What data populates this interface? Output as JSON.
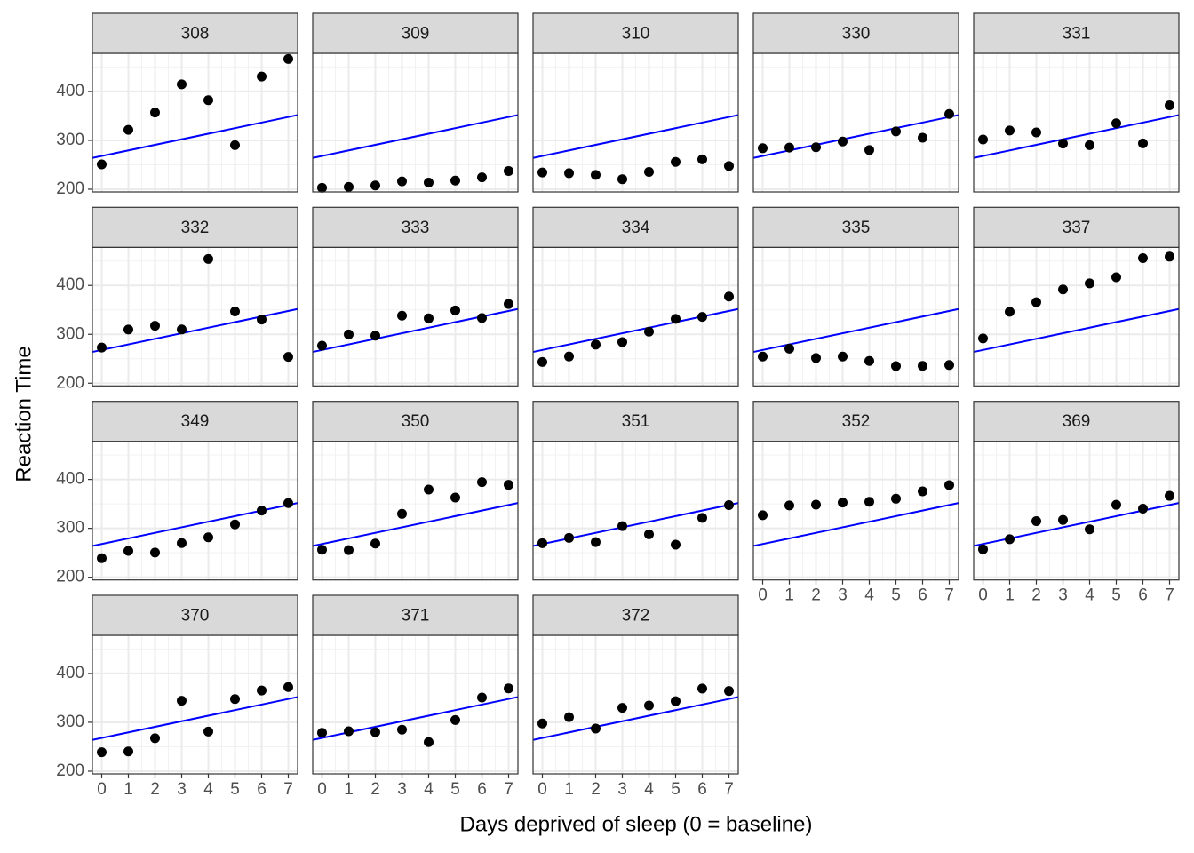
{
  "xlabel": "Days deprived of sleep (0 = baseline)",
  "ylabel": "Reaction Time",
  "chart_data": [
    {
      "type": "scatter",
      "title": "308",
      "x": [
        0,
        1,
        2,
        3,
        4,
        5,
        6,
        7
      ],
      "values": [
        250.8,
        321.4,
        356.9,
        414.7,
        382.2,
        290.1,
        430.6,
        466.4
      ],
      "fit": {
        "intercept": 268,
        "slope": 11.4
      },
      "color": "#000000",
      "line_color": "#0000ff",
      "xlim": [
        -0.35,
        7.35
      ],
      "ylim": [
        194.5,
        478
      ],
      "xticks": [
        0,
        1,
        2,
        3,
        4,
        5,
        6,
        7
      ],
      "yticks": [
        200,
        300,
        400
      ],
      "grid": true
    },
    {
      "type": "scatter",
      "title": "309",
      "x": [
        0,
        1,
        2,
        3,
        4,
        5,
        6,
        7
      ],
      "values": [
        203.0,
        204.7,
        207.7,
        216.0,
        213.6,
        217.7,
        224.3,
        237.3
      ],
      "fit": {
        "intercept": 268,
        "slope": 11.4
      },
      "color": "#000000",
      "line_color": "#0000ff",
      "xlim": [
        -0.35,
        7.35
      ],
      "ylim": [
        194.5,
        478
      ],
      "xticks": [
        0,
        1,
        2,
        3,
        4,
        5,
        6,
        7
      ],
      "yticks": [
        200,
        300,
        400
      ],
      "grid": true
    },
    {
      "type": "scatter",
      "title": "310",
      "x": [
        0,
        1,
        2,
        3,
        4,
        5,
        6,
        7
      ],
      "values": [
        234.3,
        232.8,
        229.3,
        220.5,
        235.4,
        255.8,
        261.0,
        247.5
      ],
      "fit": {
        "intercept": 268,
        "slope": 11.4
      },
      "color": "#000000",
      "line_color": "#0000ff",
      "xlim": [
        -0.35,
        7.35
      ],
      "ylim": [
        194.5,
        478
      ],
      "xticks": [
        0,
        1,
        2,
        3,
        4,
        5,
        6,
        7
      ],
      "yticks": [
        200,
        300,
        400
      ],
      "grid": true
    },
    {
      "type": "scatter",
      "title": "330",
      "x": [
        0,
        1,
        2,
        3,
        4,
        5,
        6,
        7
      ],
      "values": [
        283.9,
        285.1,
        285.8,
        297.6,
        280.2,
        318.3,
        305.3,
        354.0
      ],
      "fit": {
        "intercept": 268,
        "slope": 11.4
      },
      "color": "#000000",
      "line_color": "#0000ff",
      "xlim": [
        -0.35,
        7.35
      ],
      "ylim": [
        194.5,
        478
      ],
      "xticks": [
        0,
        1,
        2,
        3,
        4,
        5,
        6,
        7
      ],
      "yticks": [
        200,
        300,
        400
      ],
      "grid": true
    },
    {
      "type": "scatter",
      "title": "331",
      "x": [
        0,
        1,
        2,
        3,
        4,
        5,
        6,
        7
      ],
      "values": [
        301.8,
        320.1,
        316.3,
        293.3,
        290.1,
        334.8,
        293.7,
        371.6
      ],
      "fit": {
        "intercept": 268,
        "slope": 11.4
      },
      "color": "#000000",
      "line_color": "#0000ff",
      "xlim": [
        -0.35,
        7.35
      ],
      "ylim": [
        194.5,
        478
      ],
      "xticks": [
        0,
        1,
        2,
        3,
        4,
        5,
        6,
        7
      ],
      "yticks": [
        200,
        300,
        400
      ],
      "grid": true
    },
    {
      "type": "scatter",
      "title": "332",
      "x": [
        0,
        1,
        2,
        3,
        4,
        5,
        6,
        7
      ],
      "values": [
        273.0,
        309.8,
        317.5,
        309.9,
        454.2,
        346.8,
        330.3,
        253.9
      ],
      "fit": {
        "intercept": 268,
        "slope": 11.4
      },
      "color": "#000000",
      "line_color": "#0000ff",
      "xlim": [
        -0.35,
        7.35
      ],
      "ylim": [
        194.5,
        478
      ],
      "xticks": [
        0,
        1,
        2,
        3,
        4,
        5,
        6,
        7
      ],
      "yticks": [
        200,
        300,
        400
      ],
      "grid": true
    },
    {
      "type": "scatter",
      "title": "333",
      "x": [
        0,
        1,
        2,
        3,
        4,
        5,
        6,
        7
      ],
      "values": [
        276.8,
        299.8,
        297.2,
        338.1,
        332.6,
        348.8,
        333.4,
        362.0
      ],
      "fit": {
        "intercept": 268,
        "slope": 11.4
      },
      "color": "#000000",
      "line_color": "#0000ff",
      "xlim": [
        -0.35,
        7.35
      ],
      "ylim": [
        194.5,
        478
      ],
      "xticks": [
        0,
        1,
        2,
        3,
        4,
        5,
        6,
        7
      ],
      "yticks": [
        200,
        300,
        400
      ],
      "grid": true
    },
    {
      "type": "scatter",
      "title": "334",
      "x": [
        0,
        1,
        2,
        3,
        4,
        5,
        6,
        7
      ],
      "values": [
        243.4,
        254.7,
        279.0,
        284.2,
        305.5,
        331.5,
        335.7,
        377.3
      ],
      "fit": {
        "intercept": 268,
        "slope": 11.4
      },
      "color": "#000000",
      "line_color": "#0000ff",
      "xlim": [
        -0.35,
        7.35
      ],
      "ylim": [
        194.5,
        478
      ],
      "xticks": [
        0,
        1,
        2,
        3,
        4,
        5,
        6,
        7
      ],
      "yticks": [
        200,
        300,
        400
      ],
      "grid": true
    },
    {
      "type": "scatter",
      "title": "335",
      "x": [
        0,
        1,
        2,
        3,
        4,
        5,
        6,
        7
      ],
      "values": [
        254.5,
        270.8,
        251.5,
        254.6,
        245.5,
        235.1,
        235.5,
        237.2
      ],
      "fit": {
        "intercept": 268,
        "slope": 11.4
      },
      "color": "#000000",
      "line_color": "#0000ff",
      "xlim": [
        -0.35,
        7.35
      ],
      "ylim": [
        194.5,
        478
      ],
      "xticks": [
        0,
        1,
        2,
        3,
        4,
        5,
        6,
        7
      ],
      "yticks": [
        200,
        300,
        400
      ],
      "grid": true
    },
    {
      "type": "scatter",
      "title": "337",
      "x": [
        0,
        1,
        2,
        3,
        4,
        5,
        6,
        7
      ],
      "values": [
        291.6,
        346.1,
        365.7,
        391.8,
        404.3,
        416.7,
        455.9,
        458.9
      ],
      "fit": {
        "intercept": 268,
        "slope": 11.4
      },
      "color": "#000000",
      "line_color": "#0000ff",
      "xlim": [
        -0.35,
        7.35
      ],
      "ylim": [
        194.5,
        478
      ],
      "xticks": [
        0,
        1,
        2,
        3,
        4,
        5,
        6,
        7
      ],
      "yticks": [
        200,
        300,
        400
      ],
      "grid": true
    },
    {
      "type": "scatter",
      "title": "349",
      "x": [
        0,
        1,
        2,
        3,
        4,
        5,
        6,
        7
      ],
      "values": [
        238.9,
        254.0,
        250.5,
        269.9,
        281.6,
        308.1,
        336.3,
        351.6
      ],
      "fit": {
        "intercept": 268,
        "slope": 11.4
      },
      "color": "#000000",
      "line_color": "#0000ff",
      "xlim": [
        -0.35,
        7.35
      ],
      "ylim": [
        194.5,
        478
      ],
      "xticks": [
        0,
        1,
        2,
        3,
        4,
        5,
        6,
        7
      ],
      "yticks": [
        200,
        300,
        400
      ],
      "grid": true
    },
    {
      "type": "scatter",
      "title": "350",
      "x": [
        0,
        1,
        2,
        3,
        4,
        5,
        6,
        7
      ],
      "values": [
        256.2,
        255.5,
        268.9,
        329.7,
        379.4,
        362.9,
        394.5,
        389.0
      ],
      "fit": {
        "intercept": 268,
        "slope": 11.4
      },
      "color": "#000000",
      "line_color": "#0000ff",
      "xlim": [
        -0.35,
        7.35
      ],
      "ylim": [
        194.5,
        478
      ],
      "xticks": [
        0,
        1,
        2,
        3,
        4,
        5,
        6,
        7
      ],
      "yticks": [
        200,
        300,
        400
      ],
      "grid": true
    },
    {
      "type": "scatter",
      "title": "351",
      "x": [
        0,
        1,
        2,
        3,
        4,
        5,
        6,
        7
      ],
      "values": [
        269.7,
        280.6,
        271.8,
        304.6,
        287.7,
        266.6,
        321.5,
        347.6
      ],
      "fit": {
        "intercept": 268,
        "slope": 11.4
      },
      "color": "#000000",
      "line_color": "#0000ff",
      "xlim": [
        -0.35,
        7.35
      ],
      "ylim": [
        194.5,
        478
      ],
      "xticks": [
        0,
        1,
        2,
        3,
        4,
        5,
        6,
        7
      ],
      "yticks": [
        200,
        300,
        400
      ],
      "grid": true
    },
    {
      "type": "scatter",
      "title": "352",
      "x": [
        0,
        1,
        2,
        3,
        4,
        5,
        6,
        7
      ],
      "values": [
        326.9,
        346.9,
        348.4,
        352.8,
        354.4,
        360.6,
        375.6,
        388.5
      ],
      "fit": {
        "intercept": 268,
        "slope": 11.4
      },
      "color": "#000000",
      "line_color": "#0000ff",
      "xlim": [
        -0.35,
        7.35
      ],
      "ylim": [
        194.5,
        478
      ],
      "xticks": [
        0,
        1,
        2,
        3,
        4,
        5,
        6,
        7
      ],
      "yticks": [
        200,
        300,
        400
      ],
      "grid": true
    },
    {
      "type": "scatter",
      "title": "369",
      "x": [
        0,
        1,
        2,
        3,
        4,
        5,
        6,
        7
      ],
      "values": [
        257.2,
        277.7,
        314.8,
        317.2,
        298.1,
        348.1,
        340.3,
        366.5
      ],
      "fit": {
        "intercept": 268,
        "slope": 11.4
      },
      "color": "#000000",
      "line_color": "#0000ff",
      "xlim": [
        -0.35,
        7.35
      ],
      "ylim": [
        194.5,
        478
      ],
      "xticks": [
        0,
        1,
        2,
        3,
        4,
        5,
        6,
        7
      ],
      "yticks": [
        200,
        300,
        400
      ],
      "grid": true
    },
    {
      "type": "scatter",
      "title": "370",
      "x": [
        0,
        1,
        2,
        3,
        4,
        5,
        6,
        7
      ],
      "values": [
        238.8,
        240.3,
        267.4,
        344.2,
        281.1,
        347.6,
        365.2,
        372.2
      ],
      "fit": {
        "intercept": 268,
        "slope": 11.4
      },
      "color": "#000000",
      "line_color": "#0000ff",
      "xlim": [
        -0.35,
        7.35
      ],
      "ylim": [
        194.5,
        478
      ],
      "xticks": [
        0,
        1,
        2,
        3,
        4,
        5,
        6,
        7
      ],
      "yticks": [
        200,
        300,
        400
      ],
      "grid": true
    },
    {
      "type": "scatter",
      "title": "371",
      "x": [
        0,
        1,
        2,
        3,
        4,
        5,
        6,
        7
      ],
      "values": [
        278.5,
        281.7,
        279.6,
        285.0,
        259.5,
        304.6,
        350.8,
        369.5
      ],
      "fit": {
        "intercept": 268,
        "slope": 11.4
      },
      "color": "#000000",
      "line_color": "#0000ff",
      "xlim": [
        -0.35,
        7.35
      ],
      "ylim": [
        194.5,
        478
      ],
      "xticks": [
        0,
        1,
        2,
        3,
        4,
        5,
        6,
        7
      ],
      "yticks": [
        200,
        300,
        400
      ],
      "grid": true
    },
    {
      "type": "scatter",
      "title": "372",
      "x": [
        0,
        1,
        2,
        3,
        4,
        5,
        6,
        7
      ],
      "values": [
        297.6,
        310.6,
        287.2,
        329.6,
        334.5,
        343.2,
        369.1,
        364.1
      ],
      "fit": {
        "intercept": 268,
        "slope": 11.4
      },
      "color": "#000000",
      "line_color": "#0000ff",
      "xlim": [
        -0.35,
        7.35
      ],
      "ylim": [
        194.5,
        478
      ],
      "xticks": [
        0,
        1,
        2,
        3,
        4,
        5,
        6,
        7
      ],
      "yticks": [
        200,
        300,
        400
      ],
      "grid": true
    }
  ]
}
